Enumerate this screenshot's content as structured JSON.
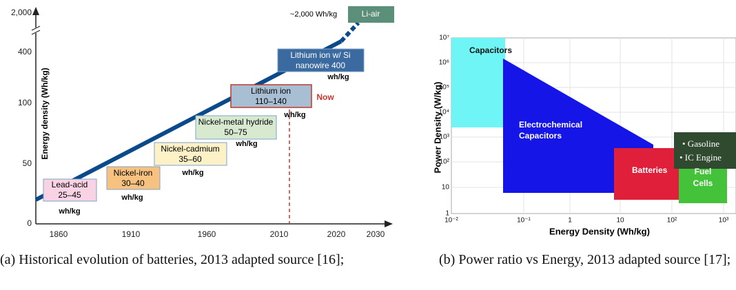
{
  "figures": [
    {
      "caption": "(a) Historical evolution of batteries, 2013 adapted source [16];",
      "y_axis_label": "Energy density (Wh/kg)",
      "y_ticks": [
        "2,000",
        400,
        100,
        50,
        0
      ],
      "x_ticks": [
        1860,
        1910,
        1960,
        2010,
        2020,
        2030
      ],
      "top_label": "~2,000 Wh/kg",
      "now_label": "Now",
      "boxes": [
        {
          "lines": [
            "Lead-acid",
            "25–45"
          ],
          "unit": "wh/kg"
        },
        {
          "lines": [
            "Nickel-iron",
            "30–40"
          ],
          "unit": "wh/kg"
        },
        {
          "lines": [
            "Nickel-cadmium",
            "35–60"
          ],
          "unit": "wh/kg"
        },
        {
          "lines": [
            "Nickel-metal hydride",
            "50–75"
          ],
          "unit": "wh/kg"
        },
        {
          "lines": [
            "Lithium ion",
            "110–140"
          ],
          "unit": "wh/kg"
        },
        {
          "lines": [
            "Lithium ion w/ Si",
            "nanowire 400"
          ],
          "unit": "wh/kg"
        },
        {
          "lines": [
            "Li-air"
          ]
        }
      ]
    },
    {
      "caption": "(b) Power ratio vs Energy, 2013 adapted source [17];",
      "y_axis_label": "Power Density (W/kg)",
      "x_axis_label": "Energy Density (Wh/kg)",
      "y_ticks": [
        "10⁷",
        "10⁶",
        "10⁵",
        "10⁴",
        "10³",
        "10²",
        "10",
        "1"
      ],
      "x_ticks": [
        "10⁻²",
        "10⁻¹",
        "1",
        "10",
        "10²",
        "10³"
      ],
      "regions": {
        "capacitors": "Capacitors",
        "electrochemical": [
          "Electrochemical",
          "Capacitors"
        ],
        "batteries": "Batteries",
        "fuel_cells": [
          "Fuel",
          "Cells"
        ],
        "engine": [
          "• Gasoline",
          "• IC Engine"
        ]
      }
    }
  ]
}
